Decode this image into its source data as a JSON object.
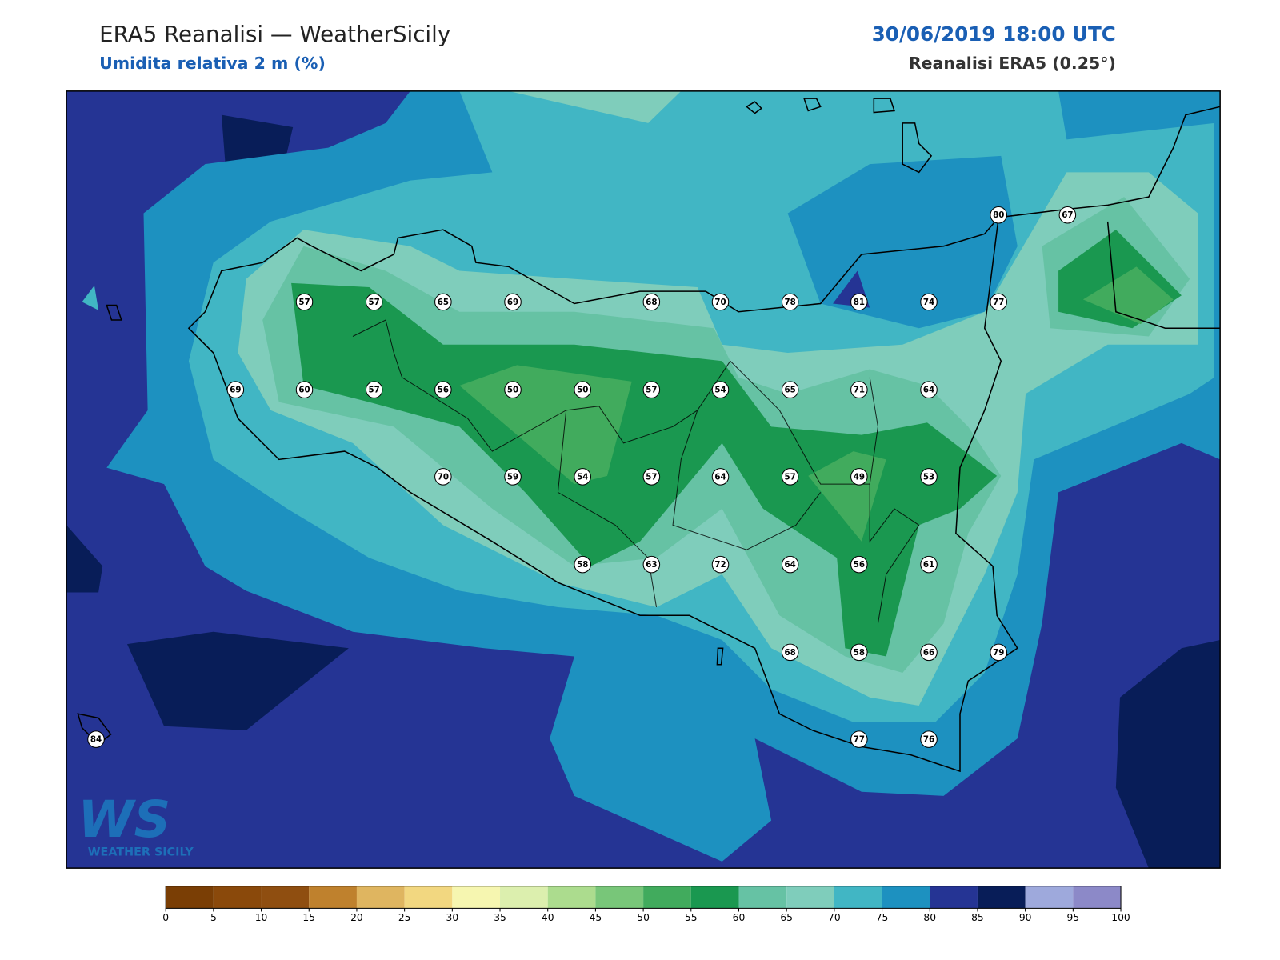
{
  "header": {
    "title": "ERA5 Reanalisi — WeatherSicily",
    "subtitle": "Umidita relativa 2 m (%)",
    "datetime": "30/06/2019 18:00 UTC",
    "source": "Reanalisi ERA5 (0.25°)"
  },
  "map": {
    "stations": [
      80,
      67,
      57,
      57,
      65,
      69,
      68,
      70,
      78,
      81,
      74,
      77,
      69,
      60,
      57,
      56,
      50,
      50,
      57,
      54,
      65,
      71,
      64,
      70,
      59,
      54,
      57,
      64,
      57,
      49,
      53,
      58,
      63,
      72,
      64,
      56,
      61,
      68,
      58,
      66,
      79,
      84,
      77,
      76
    ]
  },
  "colorbar": {
    "ticks": [
      0,
      5,
      10,
      15,
      20,
      25,
      30,
      35,
      40,
      45,
      50,
      55,
      60,
      65,
      70,
      75,
      80,
      85,
      90,
      95,
      100
    ],
    "colors": [
      "#7a3e05",
      "#8a490b",
      "#8f4e10",
      "#bf812d",
      "#dfb560",
      "#f2d780",
      "#f6f6b0",
      "#dcefae",
      "#acdc8e",
      "#78c679",
      "#41ab5d",
      "#1a9850",
      "#66c2a4",
      "#7fcdbb",
      "#41b6c4",
      "#1d91c0",
      "#253494",
      "#081d58",
      "#9ea9dc",
      "#8c89c8"
    ]
  },
  "logo": {
    "mark": "WS",
    "text": "WEATHER SICILY"
  }
}
